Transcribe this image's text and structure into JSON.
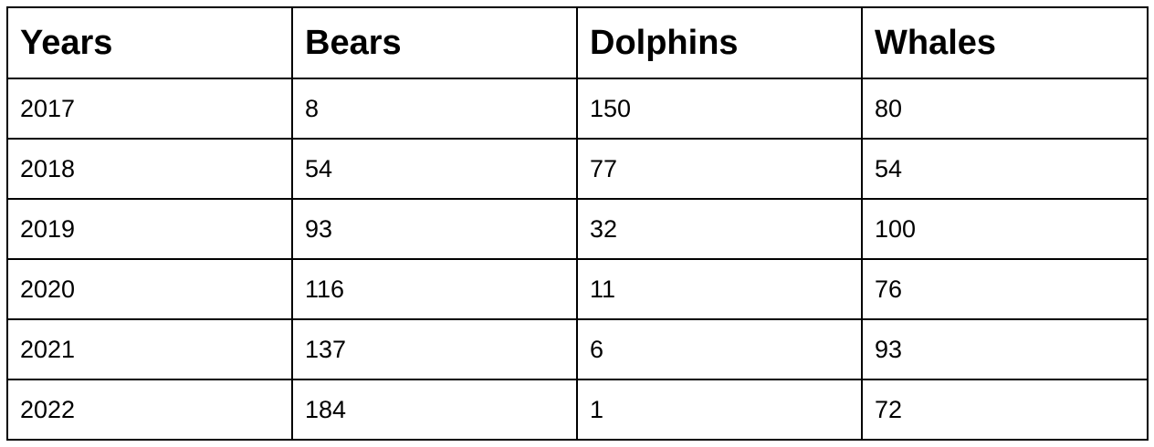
{
  "chart_data": {
    "type": "table",
    "columns": [
      "Years",
      "Bears",
      "Dolphins",
      "Whales"
    ],
    "rows": [
      [
        "2017",
        "8",
        "150",
        "80"
      ],
      [
        "2018",
        "54",
        "77",
        "54"
      ],
      [
        "2019",
        "93",
        "32",
        "100"
      ],
      [
        "2020",
        "116",
        "11",
        "76"
      ],
      [
        "2021",
        "137",
        "6",
        "93"
      ],
      [
        "2022",
        "184",
        "1",
        "72"
      ]
    ]
  },
  "colors": {
    "border": "#000000",
    "text": "#000000",
    "background": "#ffffff"
  }
}
